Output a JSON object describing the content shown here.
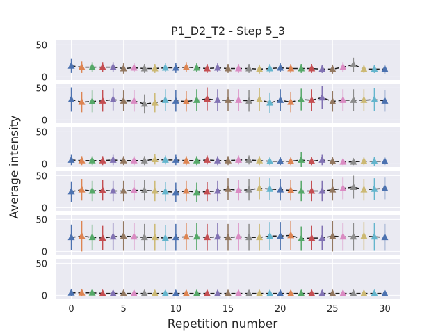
{
  "chart_data": {
    "type": "scatter",
    "title": "P1_D2_T2 - Step 5_3",
    "xlabel": "Repetition number",
    "ylabel": "Average intensity",
    "xlim": [
      -1.5,
      31.5
    ],
    "ylim": [
      -5,
      57
    ],
    "x_ticks": [
      0,
      5,
      10,
      15,
      20,
      25,
      30
    ],
    "y_ticks": [
      0,
      50
    ],
    "grid": true,
    "marker": "triangle-up",
    "colors": [
      "#4c72b0",
      "#dd8452",
      "#55a868",
      "#c44e52",
      "#8172b3",
      "#937860",
      "#da8bc3",
      "#8c8c8c",
      "#ccb974",
      "#64b5cd"
    ],
    "x": [
      0,
      1,
      2,
      3,
      4,
      5,
      6,
      7,
      8,
      9,
      10,
      11,
      12,
      13,
      14,
      15,
      16,
      17,
      18,
      19,
      20,
      21,
      22,
      23,
      24,
      25,
      26,
      27,
      28,
      29,
      30
    ],
    "subplots": [
      {
        "name": "",
        "values": [
          17,
          15,
          15,
          15,
          15,
          13,
          14,
          13,
          13,
          14,
          14,
          15,
          14,
          13,
          14,
          13,
          13,
          13,
          12,
          13,
          14,
          13,
          13,
          13,
          12,
          12,
          15,
          19,
          12,
          12,
          12
        ],
        "errors": [
          11,
          9,
          8,
          8,
          8,
          8,
          7,
          7,
          7,
          7,
          8,
          8,
          7,
          7,
          7,
          7,
          7,
          7,
          7,
          7,
          7,
          7,
          7,
          7,
          6,
          7,
          8,
          11,
          6,
          6,
          7
        ]
      },
      {
        "name": "",
        "values": [
          32,
          28,
          29,
          30,
          32,
          30,
          30,
          25,
          27,
          31,
          30,
          29,
          31,
          33,
          31,
          31,
          31,
          30,
          32,
          27,
          31,
          28,
          32,
          31,
          35,
          29,
          31,
          31,
          31,
          32,
          30
        ],
        "errors": [
          19,
          16,
          17,
          17,
          17,
          16,
          17,
          15,
          15,
          17,
          17,
          16,
          17,
          18,
          17,
          17,
          17,
          17,
          18,
          16,
          17,
          16,
          17,
          17,
          18,
          16,
          17,
          17,
          17,
          18,
          17
        ]
      },
      {
        "name": "",
        "values": [
          6,
          5,
          5,
          5,
          6,
          5,
          5,
          5,
          7,
          6,
          6,
          5,
          5,
          6,
          5,
          5,
          6,
          6,
          5,
          4,
          4,
          4,
          6,
          4,
          6,
          4,
          3,
          3,
          4,
          4,
          4
        ],
        "errors": [
          8,
          7,
          7,
          7,
          8,
          7,
          7,
          7,
          8,
          7,
          8,
          7,
          7,
          7,
          7,
          7,
          7,
          7,
          7,
          6,
          6,
          6,
          12,
          6,
          8,
          6,
          5,
          5,
          6,
          7,
          6
        ]
      },
      {
        "name": "",
        "values": [
          25,
          28,
          26,
          27,
          26,
          26,
          27,
          27,
          26,
          25,
          24,
          26,
          24,
          25,
          26,
          29,
          27,
          28,
          30,
          29,
          28,
          27,
          26,
          26,
          26,
          28,
          30,
          32,
          28,
          29,
          30
        ],
        "errors": [
          16,
          17,
          16,
          16,
          16,
          16,
          16,
          16,
          16,
          15,
          15,
          16,
          15,
          15,
          16,
          17,
          16,
          17,
          17,
          17,
          17,
          16,
          16,
          16,
          16,
          17,
          17,
          18,
          17,
          17,
          17
        ]
      },
      {
        "name": "",
        "values": [
          22,
          24,
          22,
          21,
          23,
          24,
          23,
          22,
          22,
          21,
          22,
          23,
          23,
          22,
          23,
          22,
          23,
          22,
          22,
          24,
          24,
          25,
          20,
          21,
          21,
          24,
          23,
          23,
          24,
          23,
          22
        ],
        "errors": [
          20,
          24,
          20,
          19,
          21,
          23,
          21,
          21,
          21,
          20,
          21,
          21,
          21,
          21,
          22,
          21,
          22,
          21,
          21,
          22,
          22,
          23,
          19,
          19,
          19,
          24,
          22,
          22,
          22,
          22,
          21
        ]
      },
      {
        "name": "",
        "values": [
          4,
          4,
          4,
          3,
          3,
          3,
          3,
          3,
          3,
          3,
          3,
          3,
          3,
          3,
          3,
          3,
          3,
          3,
          3,
          3,
          3,
          3,
          3,
          3,
          3,
          3,
          3,
          3,
          3,
          3,
          3
        ],
        "errors": [
          5,
          5,
          4,
          4,
          4,
          4,
          4,
          4,
          4,
          4,
          4,
          4,
          4,
          4,
          4,
          4,
          4,
          4,
          4,
          4,
          4,
          4,
          4,
          4,
          4,
          4,
          4,
          4,
          4,
          4,
          4
        ]
      }
    ]
  }
}
